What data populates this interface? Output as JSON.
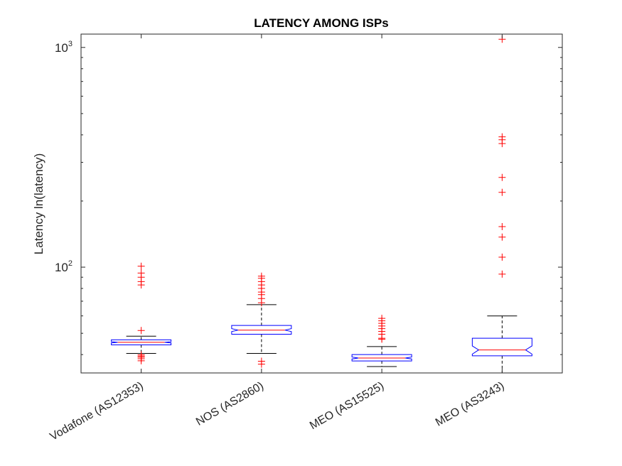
{
  "chart_data": {
    "type": "box",
    "title": "LATENCY AMONG ISPs",
    "xlabel": "",
    "ylabel": "Latency ln(latency)",
    "yscale": "log",
    "ylim": [
      33,
      1150
    ],
    "ytick_labels": [
      {
        "value": 100,
        "base": "10",
        "exp": "2"
      },
      {
        "value": 1000,
        "base": "10",
        "exp": "3"
      }
    ],
    "grid": false,
    "notched": true,
    "colors": {
      "box": "#0000ff",
      "median": "#ff0000",
      "whisker": "#000000",
      "outlier": "#ff0000",
      "axis": "#262626"
    },
    "categories": [
      "Vodafone (AS12353)",
      "NOS (AS2860)",
      "MEO (AS15525)",
      "MEO (AS3243)"
    ],
    "boxes": [
      {
        "label": "Vodafone (AS12353)",
        "whisker_low": 40.5,
        "q1": 44.3,
        "median": 45.5,
        "q3": 46.7,
        "whisker_high": 48.5,
        "notch_low": 45.2,
        "notch_high": 45.8,
        "outliers": [
          37.5,
          38.3,
          38.9,
          39.4,
          39.9,
          51.5,
          83,
          86,
          90,
          94,
          101
        ]
      },
      {
        "label": "NOS (AS2860)",
        "whisker_low": 40.5,
        "q1": 49.5,
        "median": 51.7,
        "q3": 54.3,
        "whisker_high": 67.5,
        "notch_low": 50.9,
        "notch_high": 52.5,
        "outliers": [
          36.2,
          37.3,
          68.8,
          72,
          75,
          77,
          80,
          83,
          86,
          89,
          91
        ]
      },
      {
        "label": "MEO (AS15525)",
        "whisker_low": 35.3,
        "q1": 37.4,
        "median": 38.6,
        "q3": 40.0,
        "whisker_high": 43.5,
        "notch_low": 38.2,
        "notch_high": 39.0,
        "outliers": [
          47.0,
          47.5,
          49.5,
          51.0,
          52.5,
          54.0,
          55.5,
          57.0,
          58.5
        ]
      },
      {
        "label": "MEO (AS3243)",
        "whisker_low": 33.0,
        "q1": 39.5,
        "median": 42.0,
        "q3": 47.5,
        "whisker_high": 60.0,
        "notch_low": 40.2,
        "notch_high": 43.8,
        "outliers": [
          93,
          111,
          137,
          153,
          219,
          256,
          365,
          380,
          392,
          1090
        ]
      }
    ]
  }
}
